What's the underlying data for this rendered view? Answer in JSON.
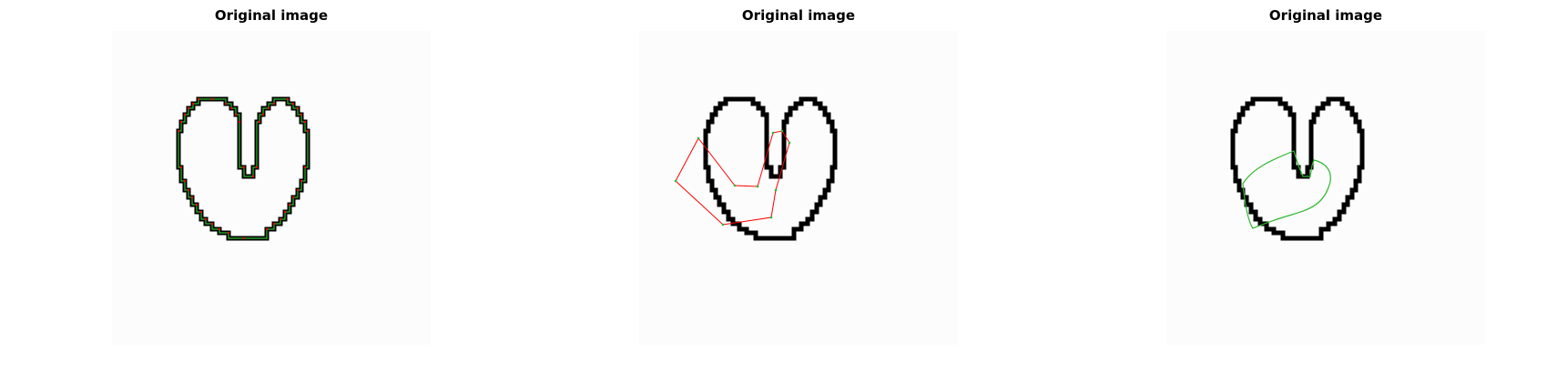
{
  "panels": [
    {
      "title": "Original image",
      "mode": "contour-trace"
    },
    {
      "title": "Original image",
      "mode": "polygon"
    },
    {
      "title": "Original image",
      "mode": "spline"
    }
  ],
  "colors": {
    "shape": "#000000",
    "polygon": "#ff0000",
    "curve": "#2eb82e",
    "background": "#fcfcfc"
  }
}
